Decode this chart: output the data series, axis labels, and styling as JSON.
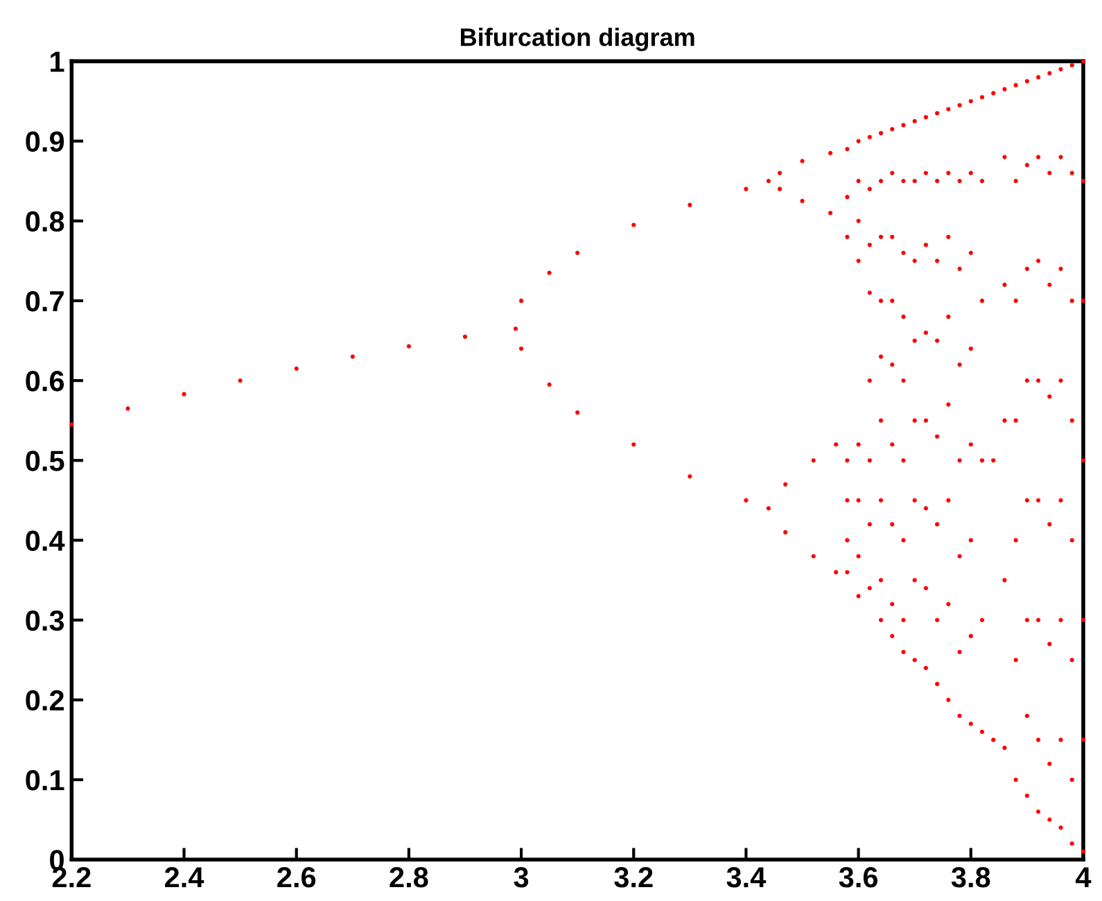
{
  "chart_data": {
    "type": "scatter",
    "title": "Bifurcation diagram",
    "xlim": [
      2.2,
      4
    ],
    "xticks": [
      2.2,
      2.4,
      2.6,
      2.8,
      3,
      3.2,
      3.4,
      3.6,
      3.8,
      4
    ],
    "ylim": [
      0,
      1
    ],
    "yticks": [
      0,
      0.1,
      0.2,
      0.3,
      0.4,
      0.5,
      0.6,
      0.7,
      0.8,
      0.9,
      1
    ],
    "grid": false,
    "legend": false,
    "marker": "circle",
    "series": [
      {
        "color": "#ff0000",
        "x": [
          2.2,
          2.3,
          2.4,
          2.5,
          2.6,
          2.7,
          2.8,
          2.9,
          2.99,
          3.0,
          3.05,
          3.1,
          3.2,
          3.3,
          3.4,
          3.44,
          3.0,
          3.05,
          3.1,
          3.2,
          3.3,
          3.4,
          3.44,
          3.46,
          3.5,
          3.55,
          3.46,
          3.5,
          3.55,
          3.47,
          3.52,
          3.56,
          3.47,
          3.52,
          3.56,
          3.58,
          3.58,
          3.58,
          3.58,
          3.58,
          3.58,
          3.58,
          3.6,
          3.6,
          3.6,
          3.6,
          3.6,
          3.6,
          3.6,
          3.6,
          3.62,
          3.62,
          3.62,
          3.62,
          3.62,
          3.62,
          3.62,
          3.62,
          3.64,
          3.64,
          3.64,
          3.64,
          3.64,
          3.64,
          3.64,
          3.64,
          3.64,
          3.66,
          3.66,
          3.66,
          3.66,
          3.66,
          3.66,
          3.66,
          3.66,
          3.66,
          3.68,
          3.68,
          3.68,
          3.68,
          3.68,
          3.68,
          3.68,
          3.68,
          3.68,
          3.7,
          3.7,
          3.7,
          3.7,
          3.7,
          3.7,
          3.7,
          3.7,
          3.72,
          3.72,
          3.72,
          3.72,
          3.72,
          3.72,
          3.72,
          3.72,
          3.74,
          3.74,
          3.74,
          3.74,
          3.74,
          3.74,
          3.74,
          3.74,
          3.76,
          3.76,
          3.76,
          3.76,
          3.76,
          3.76,
          3.76,
          3.76,
          3.78,
          3.78,
          3.78,
          3.78,
          3.78,
          3.78,
          3.78,
          3.78,
          3.8,
          3.8,
          3.8,
          3.8,
          3.8,
          3.8,
          3.8,
          3.8,
          3.82,
          3.82,
          3.82,
          3.82,
          3.82,
          3.82,
          3.84,
          3.84,
          3.84,
          3.86,
          3.86,
          3.86,
          3.86,
          3.86,
          3.86,
          3.88,
          3.88,
          3.88,
          3.88,
          3.88,
          3.88,
          3.88,
          3.9,
          3.9,
          3.9,
          3.9,
          3.9,
          3.9,
          3.9,
          3.9,
          3.92,
          3.92,
          3.92,
          3.92,
          3.92,
          3.92,
          3.92,
          3.92,
          3.94,
          3.94,
          3.94,
          3.94,
          3.94,
          3.94,
          3.94,
          3.94,
          3.96,
          3.96,
          3.96,
          3.96,
          3.96,
          3.96,
          3.96,
          3.96,
          3.98,
          3.98,
          3.98,
          3.98,
          3.98,
          3.98,
          3.98,
          3.98,
          4.0,
          4.0,
          4.0,
          4.0,
          4.0,
          4.0,
          4.0
        ],
        "values": [
          0.545,
          0.565,
          0.583,
          0.6,
          0.615,
          0.63,
          0.643,
          0.655,
          0.665,
          0.7,
          0.735,
          0.76,
          0.795,
          0.82,
          0.84,
          0.85,
          0.64,
          0.595,
          0.56,
          0.52,
          0.48,
          0.45,
          0.44,
          0.86,
          0.875,
          0.885,
          0.84,
          0.825,
          0.81,
          0.47,
          0.5,
          0.52,
          0.41,
          0.38,
          0.36,
          0.89,
          0.83,
          0.78,
          0.5,
          0.45,
          0.4,
          0.36,
          0.9,
          0.85,
          0.8,
          0.75,
          0.52,
          0.45,
          0.38,
          0.33,
          0.905,
          0.84,
          0.77,
          0.71,
          0.6,
          0.5,
          0.42,
          0.34,
          0.91,
          0.85,
          0.78,
          0.7,
          0.63,
          0.55,
          0.45,
          0.35,
          0.3,
          0.915,
          0.86,
          0.78,
          0.7,
          0.62,
          0.52,
          0.42,
          0.32,
          0.28,
          0.92,
          0.85,
          0.76,
          0.68,
          0.6,
          0.5,
          0.4,
          0.3,
          0.26,
          0.925,
          0.85,
          0.75,
          0.65,
          0.55,
          0.45,
          0.35,
          0.25,
          0.93,
          0.86,
          0.77,
          0.66,
          0.55,
          0.44,
          0.34,
          0.24,
          0.935,
          0.85,
          0.75,
          0.65,
          0.53,
          0.42,
          0.3,
          0.22,
          0.94,
          0.86,
          0.78,
          0.68,
          0.57,
          0.45,
          0.32,
          0.2,
          0.945,
          0.85,
          0.74,
          0.62,
          0.5,
          0.38,
          0.26,
          0.18,
          0.95,
          0.86,
          0.76,
          0.64,
          0.52,
          0.4,
          0.28,
          0.17,
          0.955,
          0.85,
          0.7,
          0.5,
          0.3,
          0.16,
          0.96,
          0.5,
          0.15,
          0.965,
          0.88,
          0.72,
          0.55,
          0.35,
          0.14,
          0.97,
          0.85,
          0.7,
          0.55,
          0.4,
          0.25,
          0.1,
          0.975,
          0.87,
          0.74,
          0.6,
          0.45,
          0.3,
          0.18,
          0.08,
          0.98,
          0.88,
          0.75,
          0.6,
          0.45,
          0.3,
          0.15,
          0.06,
          0.985,
          0.86,
          0.72,
          0.58,
          0.42,
          0.27,
          0.12,
          0.05,
          0.99,
          0.88,
          0.74,
          0.6,
          0.45,
          0.3,
          0.15,
          0.04,
          0.995,
          0.86,
          0.7,
          0.55,
          0.4,
          0.25,
          0.1,
          0.02,
          1.0,
          0.85,
          0.7,
          0.5,
          0.3,
          0.15,
          0.01
        ]
      }
    ]
  }
}
